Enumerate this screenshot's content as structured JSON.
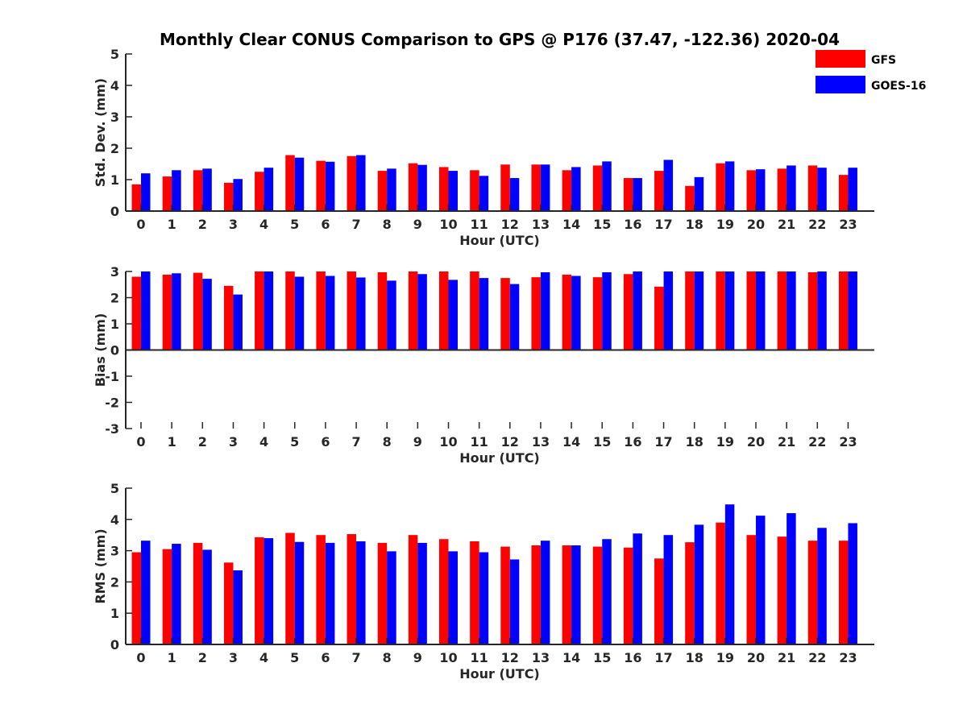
{
  "title": "Monthly Clear CONUS Comparison to GPS @ P176 (37.47, -122.36) 2020-04",
  "colors": {
    "GFS": "#ff0000",
    "GOES-16": "#0000ff",
    "axis": "#262626"
  },
  "legend": {
    "placement": "top-right",
    "entries": [
      "GFS",
      "GOES-16"
    ]
  },
  "chart_data": [
    {
      "type": "bar",
      "xlabel": "Hour (UTC)",
      "ylabel": "Std. Dev. (mm)",
      "ylim": [
        0,
        5
      ],
      "yticks": [
        "0",
        "1",
        "2",
        "3",
        "4",
        "5"
      ],
      "categories": [
        "0",
        "1",
        "2",
        "3",
        "4",
        "5",
        "6",
        "7",
        "8",
        "9",
        "10",
        "11",
        "12",
        "13",
        "14",
        "15",
        "16",
        "17",
        "18",
        "19",
        "20",
        "21",
        "22",
        "23"
      ],
      "series": [
        {
          "name": "GFS",
          "values": [
            0.85,
            1.1,
            1.3,
            0.9,
            1.25,
            1.78,
            1.6,
            1.75,
            1.28,
            1.52,
            1.4,
            1.3,
            1.48,
            1.48,
            1.3,
            1.45,
            1.05,
            1.28,
            0.8,
            1.52,
            1.3,
            1.35,
            1.45,
            1.15
          ]
        },
        {
          "name": "GOES-16",
          "values": [
            1.2,
            1.3,
            1.35,
            1.02,
            1.38,
            1.7,
            1.57,
            1.78,
            1.35,
            1.47,
            1.28,
            1.12,
            1.05,
            1.48,
            1.4,
            1.58,
            1.05,
            1.63,
            1.08,
            1.58,
            1.33,
            1.45,
            1.38,
            1.38
          ]
        }
      ]
    },
    {
      "type": "bar",
      "xlabel": "Hour (UTC)",
      "ylabel": "Bias (mm)",
      "ylim": [
        -3,
        3
      ],
      "yticks": [
        "-3",
        "-2",
        "-1",
        "0",
        "1",
        "2",
        "3"
      ],
      "categories": [
        "0",
        "1",
        "2",
        "3",
        "4",
        "5",
        "6",
        "7",
        "8",
        "9",
        "10",
        "11",
        "12",
        "13",
        "14",
        "15",
        "16",
        "17",
        "18",
        "19",
        "20",
        "21",
        "22",
        "23"
      ],
      "series": [
        {
          "name": "GFS",
          "values": [
            2.8,
            2.88,
            2.95,
            2.45,
            3.0,
            3.0,
            3.0,
            3.0,
            2.97,
            3.0,
            3.0,
            3.0,
            2.75,
            2.78,
            2.88,
            2.78,
            2.9,
            2.42,
            3.0,
            3.0,
            3.0,
            3.0,
            2.97,
            3.0
          ]
        },
        {
          "name": "GOES-16",
          "values": [
            3.0,
            2.93,
            2.72,
            2.12,
            3.0,
            2.8,
            2.83,
            2.77,
            2.65,
            2.9,
            2.68,
            2.75,
            2.52,
            2.97,
            2.83,
            2.97,
            3.0,
            3.0,
            3.0,
            3.0,
            3.0,
            3.0,
            3.0,
            3.0
          ]
        }
      ]
    },
    {
      "type": "bar",
      "xlabel": "Hour (UTC)",
      "ylabel": "RMS (mm)",
      "ylim": [
        0,
        5
      ],
      "yticks": [
        "0",
        "1",
        "2",
        "3",
        "4",
        "5"
      ],
      "categories": [
        "0",
        "1",
        "2",
        "3",
        "4",
        "5",
        "6",
        "7",
        "8",
        "9",
        "10",
        "11",
        "12",
        "13",
        "14",
        "15",
        "16",
        "17",
        "18",
        "19",
        "20",
        "21",
        "22",
        "23"
      ],
      "series": [
        {
          "name": "GFS",
          "values": [
            2.95,
            3.05,
            3.25,
            2.62,
            3.43,
            3.57,
            3.5,
            3.53,
            3.25,
            3.5,
            3.37,
            3.3,
            3.13,
            3.17,
            3.17,
            3.13,
            3.1,
            2.75,
            3.27,
            3.9,
            3.5,
            3.45,
            3.32,
            3.32
          ]
        },
        {
          "name": "GOES-16",
          "values": [
            3.32,
            3.22,
            3.03,
            2.37,
            3.4,
            3.28,
            3.25,
            3.3,
            2.98,
            3.25,
            2.98,
            2.95,
            2.72,
            3.32,
            3.17,
            3.37,
            3.55,
            3.5,
            3.83,
            4.48,
            4.12,
            4.2,
            3.73,
            3.88
          ]
        }
      ]
    }
  ]
}
